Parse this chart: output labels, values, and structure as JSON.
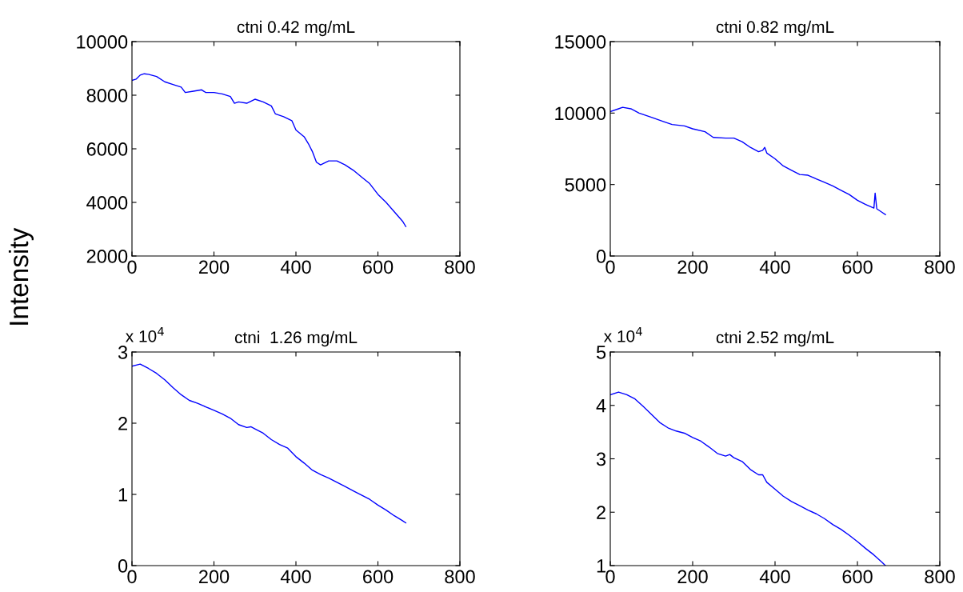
{
  "chart_data": [
    {
      "type": "line",
      "title": "ctni 0.42 mg/mL",
      "ylabel": "Intensity",
      "xlim": [
        0,
        800
      ],
      "xticks": [
        0,
        200,
        400,
        600,
        800
      ],
      "ylim": [
        2000,
        10000
      ],
      "yticks": [
        2000,
        4000,
        6000,
        8000,
        10000
      ],
      "series": [
        {
          "color": "#0000ff",
          "x": [
            0,
            10,
            20,
            30,
            40,
            60,
            80,
            100,
            120,
            130,
            150,
            170,
            180,
            200,
            220,
            240,
            250,
            260,
            280,
            300,
            320,
            340,
            350,
            370,
            390,
            400,
            420,
            430,
            440,
            450,
            460,
            480,
            500,
            520,
            540,
            560,
            580,
            600,
            620,
            640,
            660,
            668
          ],
          "values": [
            8550,
            8600,
            8750,
            8800,
            8780,
            8700,
            8500,
            8400,
            8300,
            8100,
            8150,
            8200,
            8100,
            8100,
            8050,
            7950,
            7700,
            7750,
            7700,
            7850,
            7750,
            7600,
            7300,
            7200,
            7050,
            6700,
            6450,
            6200,
            5900,
            5500,
            5400,
            5550,
            5550,
            5400,
            5200,
            4950,
            4700,
            4300,
            4000,
            3650,
            3300,
            3100
          ]
        }
      ]
    },
    {
      "type": "line",
      "title": "ctni 0.82 mg/mL",
      "xlim": [
        0,
        800
      ],
      "xticks": [
        0,
        200,
        400,
        600,
        800
      ],
      "ylim": [
        0,
        15000
      ],
      "yticks": [
        0,
        5000,
        10000,
        15000
      ],
      "series": [
        {
          "color": "#0000ff",
          "x": [
            0,
            20,
            30,
            50,
            70,
            100,
            130,
            150,
            180,
            200,
            230,
            250,
            280,
            300,
            320,
            340,
            360,
            370,
            375,
            380,
            400,
            420,
            440,
            460,
            480,
            500,
            520,
            540,
            560,
            580,
            600,
            620,
            640,
            643,
            647,
            660,
            668
          ],
          "values": [
            10100,
            10300,
            10400,
            10300,
            10000,
            9700,
            9400,
            9200,
            9100,
            8900,
            8700,
            8300,
            8250,
            8250,
            8000,
            7600,
            7300,
            7400,
            7600,
            7200,
            6800,
            6300,
            6000,
            5700,
            5650,
            5400,
            5150,
            4900,
            4600,
            4300,
            3900,
            3600,
            3350,
            4400,
            3300,
            3050,
            2900
          ]
        }
      ]
    },
    {
      "type": "line",
      "title": "ctni  1.26 mg/mL",
      "annotations": [
        "x 10$^{4}$"
      ],
      "xlim": [
        0,
        800
      ],
      "xticks": [
        0,
        200,
        400,
        600,
        800
      ],
      "ylim": [
        0,
        3
      ],
      "yticks": [
        0,
        1,
        2,
        3
      ],
      "series": [
        {
          "color": "#0000ff",
          "x": [
            0,
            20,
            40,
            60,
            80,
            100,
            120,
            140,
            160,
            180,
            200,
            220,
            240,
            260,
            280,
            290,
            300,
            320,
            340,
            360,
            380,
            400,
            420,
            440,
            460,
            480,
            500,
            520,
            540,
            560,
            580,
            600,
            620,
            640,
            660,
            668
          ],
          "values": [
            2.8,
            2.83,
            2.77,
            2.7,
            2.61,
            2.5,
            2.4,
            2.32,
            2.28,
            2.23,
            2.18,
            2.13,
            2.07,
            1.98,
            1.94,
            1.95,
            1.92,
            1.86,
            1.77,
            1.7,
            1.65,
            1.53,
            1.44,
            1.34,
            1.28,
            1.23,
            1.17,
            1.11,
            1.05,
            0.99,
            0.93,
            0.85,
            0.78,
            0.7,
            0.63,
            0.6
          ]
        }
      ]
    },
    {
      "type": "line",
      "title": "ctni 2.52 mg/mL",
      "annotations": [
        "x 10$^{4}$"
      ],
      "xlim": [
        0,
        800
      ],
      "xticks": [
        0,
        200,
        400,
        600,
        800
      ],
      "ylim": [
        1,
        5
      ],
      "yticks": [
        1,
        2,
        3,
        4,
        5
      ],
      "series": [
        {
          "color": "#0000ff",
          "x": [
            0,
            20,
            40,
            60,
            80,
            100,
            120,
            140,
            160,
            180,
            200,
            220,
            240,
            260,
            280,
            290,
            300,
            320,
            340,
            360,
            370,
            380,
            400,
            420,
            440,
            460,
            480,
            500,
            520,
            540,
            560,
            580,
            600,
            620,
            640,
            660,
            668
          ],
          "values": [
            4.2,
            4.25,
            4.2,
            4.12,
            3.98,
            3.83,
            3.68,
            3.58,
            3.52,
            3.48,
            3.4,
            3.33,
            3.22,
            3.1,
            3.05,
            3.08,
            3.02,
            2.95,
            2.8,
            2.7,
            2.7,
            2.56,
            2.43,
            2.3,
            2.2,
            2.12,
            2.04,
            1.97,
            1.88,
            1.77,
            1.68,
            1.57,
            1.45,
            1.32,
            1.2,
            1.06,
            1.0
          ]
        }
      ]
    }
  ]
}
